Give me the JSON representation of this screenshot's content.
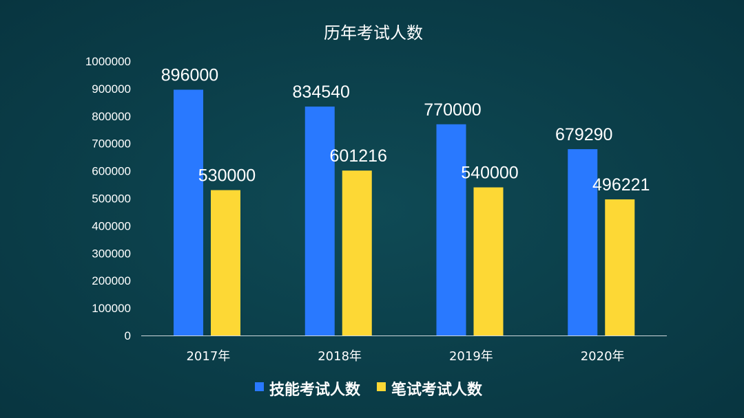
{
  "chart_data": {
    "type": "bar",
    "title": "历年考试人数",
    "xlabel": "",
    "ylabel": "",
    "categories": [
      "2017年",
      "2018年",
      "2019年",
      "2020年"
    ],
    "series": [
      {
        "name": "技能考试人数",
        "values": [
          896000,
          834540,
          770000,
          679290
        ],
        "color": "#2979ff"
      },
      {
        "name": "笔试考试人数",
        "values": [
          530000,
          601216,
          540000,
          496221
        ],
        "color": "#fdd835"
      }
    ],
    "ylim": [
      0,
      1000000
    ],
    "yticks": [
      "0",
      "100000",
      "200000",
      "300000",
      "400000",
      "500000",
      "600000",
      "700000",
      "800000",
      "900000",
      "1000000"
    ],
    "data_labels": [
      [
        "896000",
        "834540",
        "770000",
        "679290"
      ],
      [
        "530000",
        "601216",
        "540000",
        "496221"
      ]
    ],
    "grid": false,
    "legend": "bottom-center"
  }
}
